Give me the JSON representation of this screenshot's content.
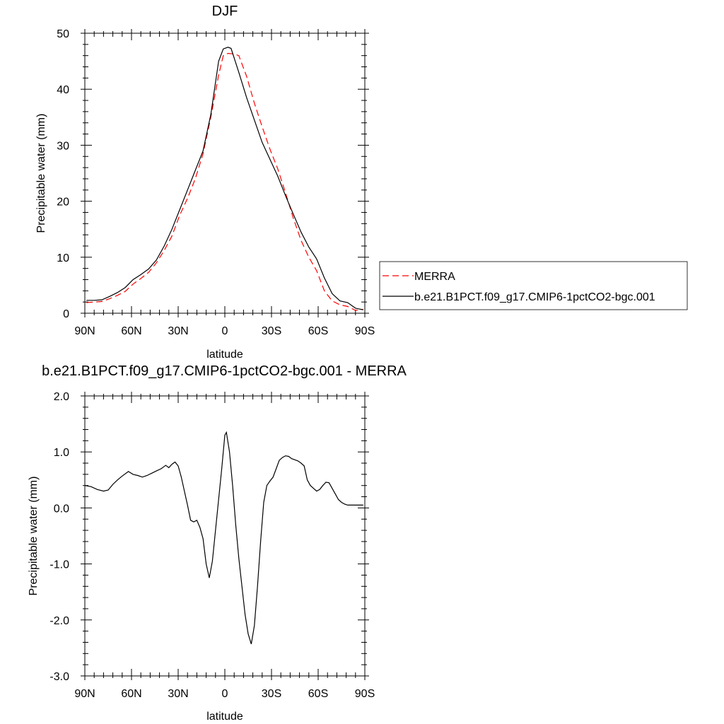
{
  "chart_data": [
    {
      "type": "line",
      "title": "DJF",
      "xlabel": "latitude",
      "ylabel": "Precipitable water (mm)",
      "xlim": [
        90,
        -90
      ],
      "ylim": [
        0,
        50
      ],
      "x_ticks": [
        {
          "value": 90,
          "label": "90N"
        },
        {
          "value": 60,
          "label": "60N"
        },
        {
          "value": 30,
          "label": "30N"
        },
        {
          "value": 0,
          "label": "0"
        },
        {
          "value": -30,
          "label": "30S"
        },
        {
          "value": -60,
          "label": "60S"
        },
        {
          "value": -90,
          "label": "90S"
        }
      ],
      "y_ticks": [
        {
          "value": 0,
          "label": "0"
        },
        {
          "value": 10,
          "label": "10"
        },
        {
          "value": 20,
          "label": "20"
        },
        {
          "value": 30,
          "label": "30"
        },
        {
          "value": 40,
          "label": "40"
        },
        {
          "value": 50,
          "label": "50"
        }
      ],
      "legend": {
        "placement": "right"
      },
      "series": [
        {
          "name": "MERRA",
          "color": "#ff0000",
          "dash": "dashed",
          "x": [
            89,
            84,
            79,
            74,
            69,
            64,
            59,
            54,
            49,
            44,
            39,
            34,
            29,
            24,
            19,
            14,
            9,
            4,
            1,
            -2,
            -6,
            -9,
            -14,
            -19,
            -24,
            -29,
            -34,
            -39,
            -44,
            -49,
            -54,
            -59,
            -64,
            -69,
            -74,
            -79,
            -84,
            -89
          ],
          "y": [
            1.9,
            2.0,
            2.1,
            2.6,
            3.2,
            3.9,
            5.2,
            6.2,
            7.3,
            9.0,
            11.2,
            13.8,
            17.5,
            20.5,
            24.0,
            28.5,
            35.0,
            42.5,
            46.0,
            46.4,
            46.3,
            46.0,
            42.3,
            37.5,
            33.3,
            29.3,
            25.8,
            21.5,
            17.0,
            13.0,
            10.0,
            7.6,
            4.0,
            2.2,
            1.5,
            1.2,
            0.5,
            0.7
          ]
        },
        {
          "name": "b.e21.B1PCT.f09_g17.CMIP6-1pctCO2-bgc.001",
          "color": "#000000",
          "dash": "solid",
          "x": [
            89,
            84,
            79,
            74,
            69,
            64,
            59,
            54,
            49,
            44,
            39,
            34,
            29,
            24,
            19,
            14,
            9,
            4,
            1,
            -2,
            -4,
            -9,
            -14,
            -19,
            -24,
            -29,
            -34,
            -39,
            -44,
            -49,
            -54,
            -59,
            -64,
            -69,
            -74,
            -79,
            -84,
            -89
          ],
          "y": [
            2.3,
            2.3,
            2.4,
            3.0,
            3.7,
            4.6,
            6.0,
            6.9,
            7.9,
            9.5,
            12.0,
            15.0,
            18.5,
            22.0,
            25.5,
            29.0,
            35.5,
            45.0,
            47.2,
            47.5,
            47.3,
            43.0,
            38.5,
            34.5,
            30.5,
            27.5,
            24.5,
            21.0,
            17.7,
            14.5,
            11.8,
            9.7,
            6.3,
            3.5,
            2.2,
            1.9,
            0.9,
            0.6
          ]
        }
      ]
    },
    {
      "type": "line",
      "title": "b.e21.B1PCT.f09_g17.CMIP6-1pctCO2-bgc.001 - MERRA",
      "xlabel": "latitude",
      "ylabel": "Precipitable water (mm)",
      "xlim": [
        90,
        -90
      ],
      "ylim": [
        -3.0,
        2.0
      ],
      "x_ticks": [
        {
          "value": 90,
          "label": "90N"
        },
        {
          "value": 60,
          "label": "60N"
        },
        {
          "value": 30,
          "label": "30N"
        },
        {
          "value": 0,
          "label": "0"
        },
        {
          "value": -30,
          "label": "30S"
        },
        {
          "value": -60,
          "label": "60S"
        },
        {
          "value": -90,
          "label": "90S"
        }
      ],
      "y_ticks": [
        {
          "value": 2.0,
          "label": "2.0"
        },
        {
          "value": 1.0,
          "label": "1.0"
        },
        {
          "value": 0.0,
          "label": "0.0"
        },
        {
          "value": -1.0,
          "label": "-1.0"
        },
        {
          "value": -2.0,
          "label": "-2.0"
        },
        {
          "value": -3.0,
          "label": "-3.0"
        }
      ],
      "series": [
        {
          "color": "#000000",
          "dash": "solid",
          "x": [
            90,
            86,
            82,
            78,
            75,
            72,
            69,
            66,
            62,
            59,
            56,
            53,
            50,
            47,
            44,
            41,
            38,
            36,
            34,
            32,
            30,
            28,
            26,
            24,
            22,
            20,
            18,
            16,
            14,
            12,
            10,
            8,
            6,
            4,
            2,
            1,
            0,
            -1,
            -3,
            -5,
            -7,
            -9,
            -11,
            -13,
            -15,
            -17,
            -19,
            -21,
            -23,
            -25,
            -27,
            -29,
            -31,
            -33,
            -35,
            -37,
            -39,
            -41,
            -43,
            -45,
            -47,
            -49,
            -51,
            -53,
            -55,
            -57,
            -59,
            -61,
            -63,
            -65,
            -67,
            -69,
            -71,
            -73,
            -75,
            -77,
            -79,
            -81,
            -83,
            -85,
            -87,
            -89
          ],
          "y": [
            0.4,
            0.38,
            0.33,
            0.3,
            0.32,
            0.42,
            0.5,
            0.57,
            0.65,
            0.6,
            0.58,
            0.55,
            0.58,
            0.62,
            0.66,
            0.7,
            0.76,
            0.72,
            0.78,
            0.82,
            0.75,
            0.55,
            0.3,
            0.05,
            -0.22,
            -0.25,
            -0.22,
            -0.35,
            -0.55,
            -1.0,
            -1.25,
            -0.95,
            -0.4,
            0.15,
            0.7,
            1.0,
            1.3,
            1.35,
            1.0,
            0.4,
            -0.3,
            -0.9,
            -1.4,
            -1.9,
            -2.25,
            -2.43,
            -2.1,
            -1.4,
            -0.6,
            0.1,
            0.4,
            0.48,
            0.55,
            0.7,
            0.85,
            0.9,
            0.93,
            0.92,
            0.88,
            0.86,
            0.84,
            0.8,
            0.75,
            0.5,
            0.4,
            0.35,
            0.3,
            0.33,
            0.4,
            0.46,
            0.45,
            0.35,
            0.25,
            0.15,
            0.1,
            0.07,
            0.05,
            0.05,
            0.05,
            0.05,
            0.05,
            0.05
          ]
        }
      ]
    }
  ]
}
